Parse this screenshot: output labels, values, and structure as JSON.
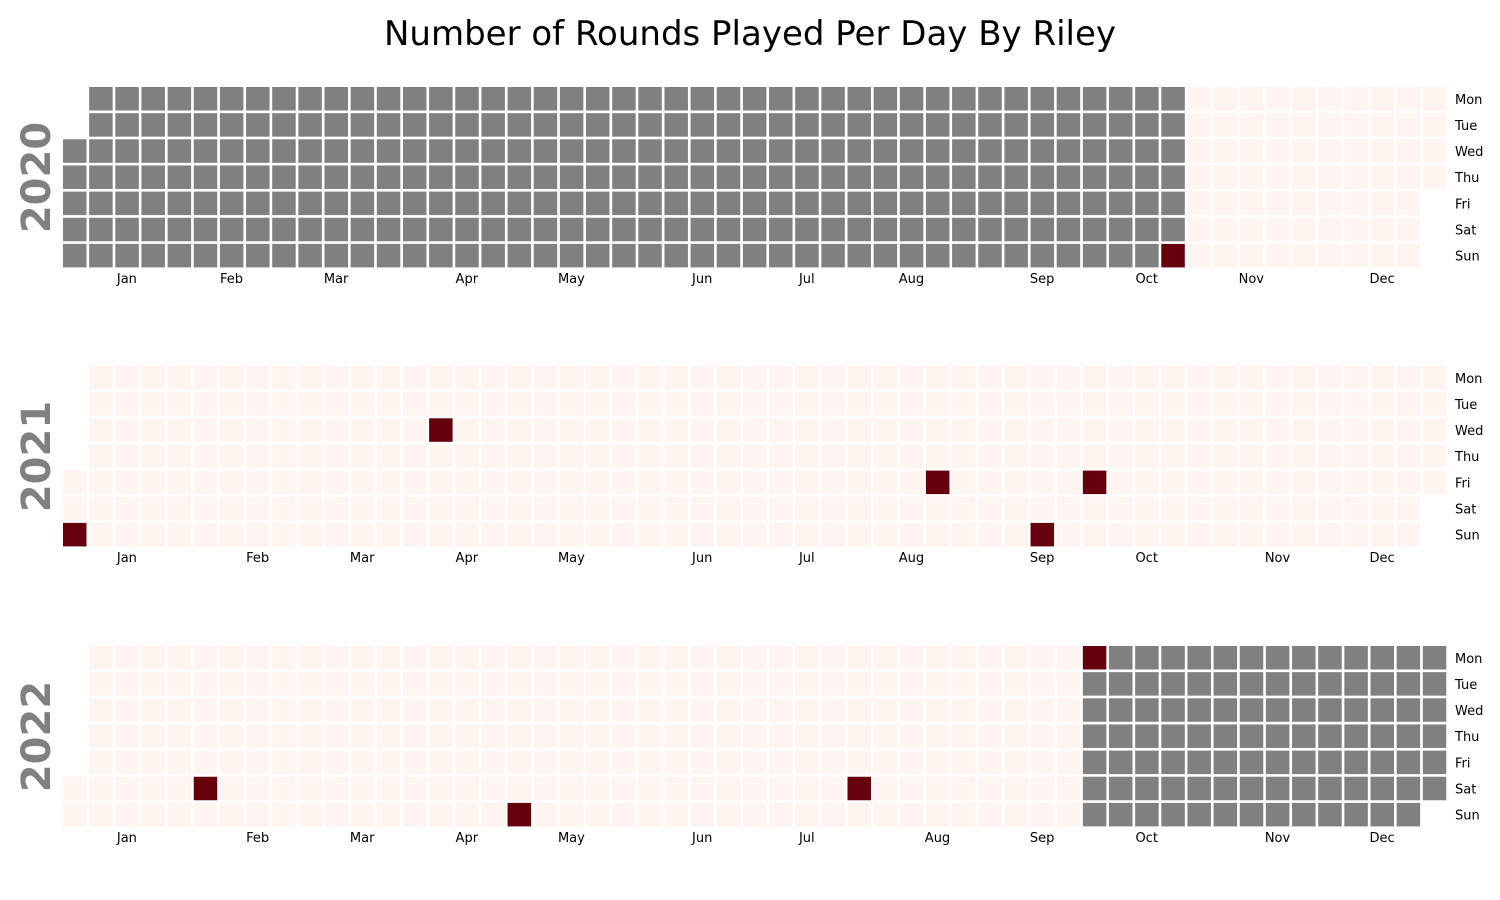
{
  "chart_data": {
    "type": "heatmap",
    "title": "Number of Rounds Played Per Day By Riley",
    "weekday_labels": [
      "Mon",
      "Tue",
      "Wed",
      "Thu",
      "Fri",
      "Sat",
      "Sun"
    ],
    "colors": {
      "no_data": "#808080",
      "zero": "#fff5f0",
      "played": "#67000d"
    },
    "data_range": {
      "start": "2020-10-25",
      "end": "2022-09-26"
    },
    "played_days": [
      {
        "date": "2020-10-25",
        "rounds": 1
      },
      {
        "date": "2021-01-03",
        "rounds": 1
      },
      {
        "date": "2021-04-07",
        "rounds": 1
      },
      {
        "date": "2021-08-20",
        "rounds": 1
      },
      {
        "date": "2021-09-19",
        "rounds": 1
      },
      {
        "date": "2021-10-01",
        "rounds": 1
      },
      {
        "date": "2022-02-05",
        "rounds": 1
      },
      {
        "date": "2022-05-01",
        "rounds": 1
      },
      {
        "date": "2022-07-30",
        "rounds": 1
      },
      {
        "date": "2022-09-26",
        "rounds": 1
      }
    ],
    "years": [
      {
        "year": "2020",
        "months": [
          {
            "label": "Jan",
            "date": "2020-01-01"
          },
          {
            "label": "Feb",
            "date": "2020-02-01"
          },
          {
            "label": "Mar",
            "date": "2020-03-01"
          },
          {
            "label": "Apr",
            "date": "2020-04-01"
          },
          {
            "label": "May",
            "date": "2020-05-01"
          },
          {
            "label": "Jun",
            "date": "2020-06-01"
          },
          {
            "label": "Jul",
            "date": "2020-07-01"
          },
          {
            "label": "Aug",
            "date": "2020-08-01"
          },
          {
            "label": "Sep",
            "date": "2020-09-01"
          },
          {
            "label": "Oct",
            "date": "2020-10-01"
          },
          {
            "label": "Nov",
            "date": "2020-11-01"
          },
          {
            "label": "Dec",
            "date": "2020-12-01"
          }
        ]
      },
      {
        "year": "2021",
        "months": [
          {
            "label": "Jan",
            "date": "2021-01-01"
          },
          {
            "label": "Feb",
            "date": "2021-02-01"
          },
          {
            "label": "Mar",
            "date": "2021-03-01"
          },
          {
            "label": "Apr",
            "date": "2021-04-01"
          },
          {
            "label": "May",
            "date": "2021-05-01"
          },
          {
            "label": "Jun",
            "date": "2021-06-01"
          },
          {
            "label": "Jul",
            "date": "2021-07-01"
          },
          {
            "label": "Aug",
            "date": "2021-08-01"
          },
          {
            "label": "Sep",
            "date": "2021-09-01"
          },
          {
            "label": "Oct",
            "date": "2021-10-01"
          },
          {
            "label": "Nov",
            "date": "2021-11-01"
          },
          {
            "label": "Dec",
            "date": "2021-12-01"
          }
        ]
      },
      {
        "year": "2022",
        "months": [
          {
            "label": "Jan",
            "date": "2022-01-01"
          },
          {
            "label": "Feb",
            "date": "2022-02-01"
          },
          {
            "label": "Mar",
            "date": "2022-03-01"
          },
          {
            "label": "Apr",
            "date": "2022-04-01"
          },
          {
            "label": "May",
            "date": "2022-05-01"
          },
          {
            "label": "Jun",
            "date": "2022-06-01"
          },
          {
            "label": "Jul",
            "date": "2022-07-01"
          },
          {
            "label": "Aug",
            "date": "2022-08-01"
          },
          {
            "label": "Sep",
            "date": "2022-09-01"
          },
          {
            "label": "Oct",
            "date": "2022-10-01"
          },
          {
            "label": "Nov",
            "date": "2022-11-01"
          },
          {
            "label": "Dec",
            "date": "2022-12-01"
          }
        ]
      }
    ]
  }
}
